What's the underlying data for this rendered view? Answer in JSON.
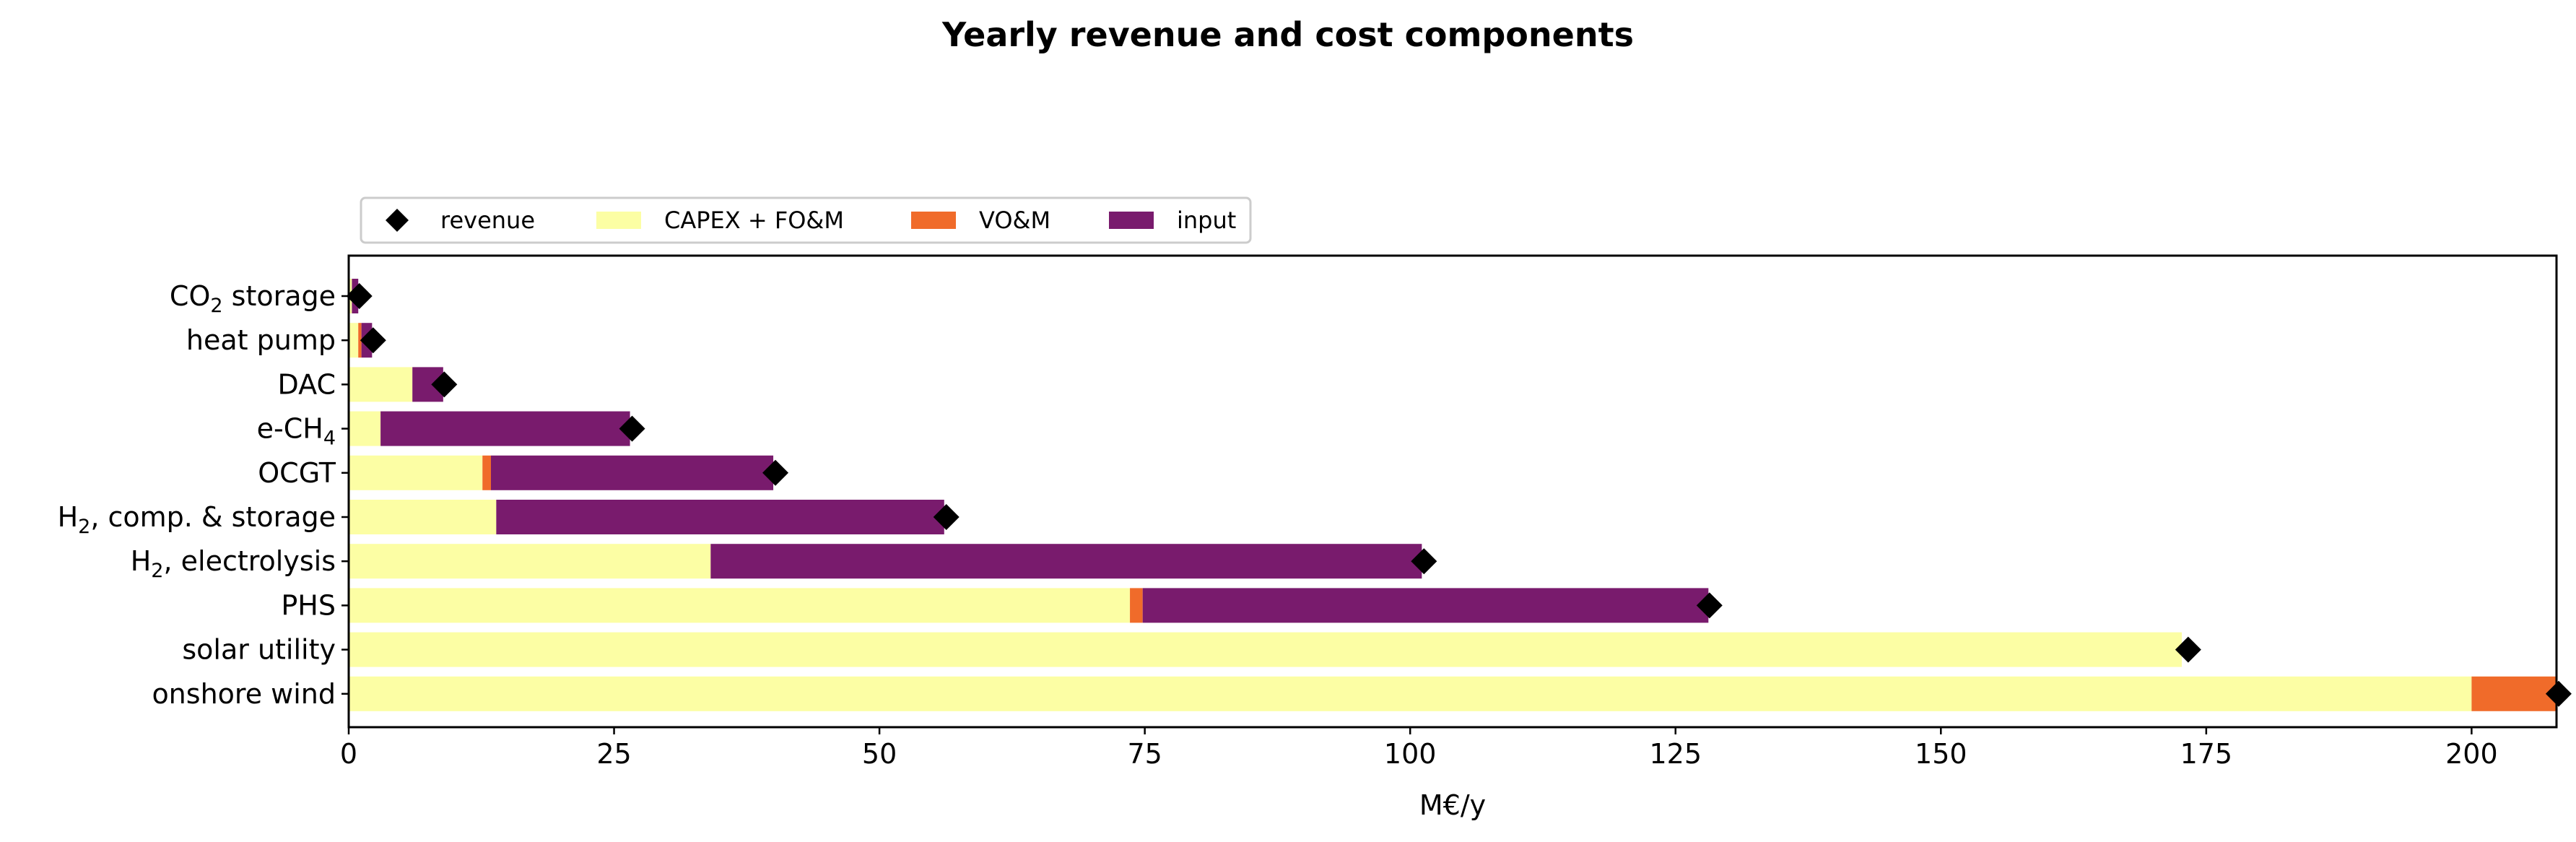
{
  "chart_data": {
    "type": "bar",
    "orientation": "horizontal",
    "stacked": true,
    "title": "Yearly revenue and cost components",
    "xlabel": "M€/y",
    "ylabel": "",
    "xlim": [
      0,
      208
    ],
    "xticks": [
      0,
      25,
      50,
      75,
      100,
      125,
      150,
      175,
      200
    ],
    "grid": false,
    "legend_position": "top-left, above plot",
    "categories": [
      {
        "pre": "CO",
        "sub": "2",
        "post": " storage"
      },
      {
        "pre": "heat pump",
        "sub": "",
        "post": ""
      },
      {
        "pre": "DAC",
        "sub": "",
        "post": ""
      },
      {
        "pre": "e-CH",
        "sub": "4",
        "post": ""
      },
      {
        "pre": "OCGT",
        "sub": "",
        "post": ""
      },
      {
        "pre": "H",
        "sub": "2",
        "post": ", comp. & storage"
      },
      {
        "pre": "H",
        "sub": "2",
        "post": ", electrolysis"
      },
      {
        "pre": "PHS",
        "sub": "",
        "post": ""
      },
      {
        "pre": "solar utility",
        "sub": "",
        "post": ""
      },
      {
        "pre": "onshore wind",
        "sub": "",
        "post": ""
      }
    ],
    "series": [
      {
        "name": "CAPEX + FO&M",
        "color": "#fcfea4",
        "values": [
          0.3,
          0.9,
          6.0,
          3.0,
          12.6,
          13.9,
          34.1,
          73.6,
          172.7,
          200.0
        ]
      },
      {
        "name": "VO&M",
        "color": "#f06b2a",
        "values": [
          0.0,
          0.3,
          0.0,
          0.0,
          0.8,
          0.0,
          0.0,
          1.2,
          0.0,
          7.9
        ]
      },
      {
        "name": "input",
        "color": "#791b6d",
        "values": [
          0.6,
          1.0,
          2.9,
          23.5,
          26.6,
          42.2,
          67.0,
          53.3,
          0.0,
          0.0
        ]
      }
    ],
    "revenue": {
      "name": "revenue",
      "color": "#000000",
      "marker": "diamond",
      "values": [
        1.0,
        2.3,
        9.0,
        26.7,
        40.2,
        56.3,
        101.3,
        128.2,
        173.3,
        208.2
      ]
    }
  }
}
